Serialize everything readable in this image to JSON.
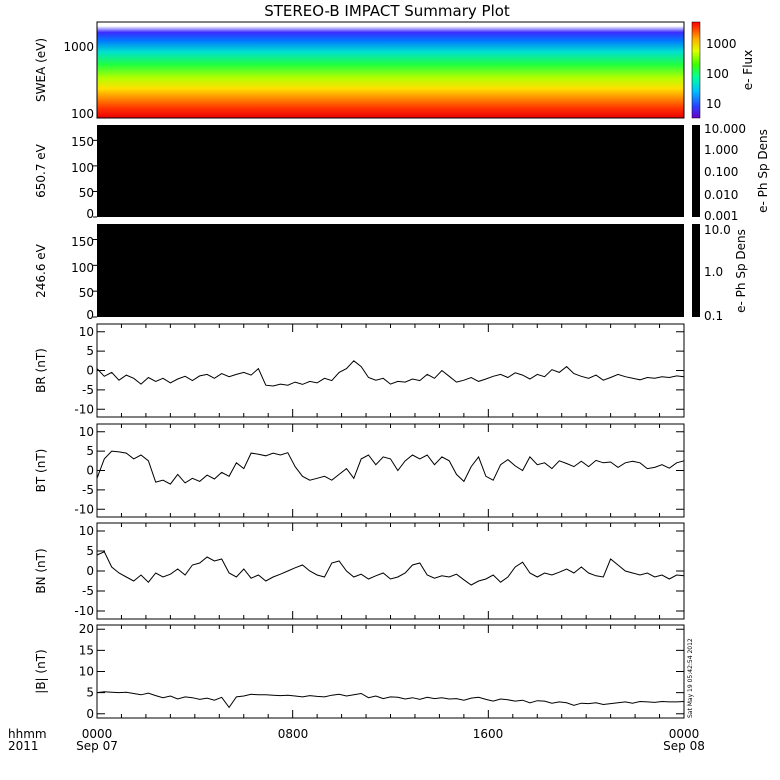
{
  "title": "STEREO-B IMPACT Summary Plot",
  "footer": {
    "row1": "hhmm",
    "row2": "2011",
    "time_ticks": [
      "0000",
      "0800",
      "1600",
      "0000"
    ],
    "date_labels": [
      "Sep 07",
      "Sep 08"
    ]
  },
  "timestamp": "Sat May 19 05:42:54 2012",
  "colors": {
    "trace": "#000000",
    "background": "#ffffff",
    "panel_fill": "#000000"
  },
  "chart_data": [
    {
      "type": "heatmap",
      "ylabel": "SWEA (eV)",
      "ylog": true,
      "ylim": [
        100,
        2000
      ],
      "yticks": [
        "1000",
        "100"
      ],
      "colorbar": {
        "label": "e- Flux",
        "ticks": [
          "1000",
          "100",
          "10"
        ],
        "range": [
          3,
          5000
        ],
        "log": true
      },
      "description_rows_eV": [
        {
          "energy": 1800,
          "flux": 5
        },
        {
          "energy": 1600,
          "flux": 20
        },
        {
          "energy": 1200,
          "flux": 60
        },
        {
          "energy": 900,
          "flux": 150
        },
        {
          "energy": 600,
          "flux": 400
        },
        {
          "energy": 350,
          "flux": 1000
        },
        {
          "energy": 250,
          "flux": 2000
        },
        {
          "energy": 150,
          "flux": 3500
        },
        {
          "energy": 100,
          "flux": 4500
        }
      ]
    },
    {
      "type": "heatmap",
      "ylabel": "650.7 eV",
      "ylim": [
        0,
        180
      ],
      "yticks": [
        "150",
        "100",
        "50",
        "0"
      ],
      "colorbar": {
        "label": "e- Ph Sp Dens",
        "ticks": [
          "10.000",
          "1.000",
          "0.100",
          "0.010",
          "0.001"
        ],
        "log": true
      }
    },
    {
      "type": "heatmap",
      "ylabel": "246.6 eV",
      "ylim": [
        0,
        180
      ],
      "yticks": [
        "150",
        "100",
        "50",
        "0"
      ],
      "colorbar": {
        "label": "e- Ph Sp Dens",
        "ticks": [
          "10.0",
          "1.0",
          "0.1"
        ],
        "log": true
      }
    },
    {
      "type": "line",
      "ylabel": "BR (nT)",
      "ylim": [
        -12,
        12
      ],
      "yticks": [
        "10",
        "5",
        "0",
        "-5",
        "-10"
      ],
      "x": [
        0,
        0.3,
        0.6,
        0.9,
        1.2,
        1.5,
        1.8,
        2.1,
        2.4,
        2.7,
        3.0,
        3.3,
        3.6,
        3.9,
        4.2,
        4.5,
        4.8,
        5.1,
        5.4,
        5.7,
        6.0,
        6.3,
        6.6,
        6.9,
        7.2,
        7.5,
        7.8,
        8.1,
        8.4,
        8.7,
        9.0,
        9.3,
        9.6,
        9.9,
        10.2,
        10.5,
        10.8,
        11.1,
        11.4,
        11.7,
        12.0,
        12.3,
        12.6,
        12.9,
        13.2,
        13.5,
        13.8,
        14.1,
        14.4,
        14.7,
        15.0,
        15.3,
        15.6,
        15.9,
        16.2,
        16.5,
        16.8,
        17.1,
        17.4,
        17.7,
        18.0,
        18.3,
        18.6,
        18.9,
        19.2,
        19.5,
        19.8,
        20.1,
        20.4,
        20.7,
        21.0,
        21.3,
        21.6,
        21.9,
        22.2,
        22.5,
        22.8,
        23.1,
        23.4,
        23.7,
        24.0
      ],
      "values": [
        0.5,
        -1.5,
        -0.5,
        -2.5,
        -1.2,
        -2.0,
        -3.5,
        -1.8,
        -2.8,
        -2.0,
        -3.2,
        -2.2,
        -1.5,
        -2.6,
        -1.4,
        -1.0,
        -2.0,
        -0.8,
        -1.6,
        -1.0,
        -0.5,
        -1.2,
        0.5,
        -3.8,
        -4.0,
        -3.5,
        -3.8,
        -3.0,
        -3.6,
        -2.8,
        -3.2,
        -2.0,
        -2.6,
        -0.5,
        0.5,
        2.5,
        1.0,
        -1.8,
        -2.5,
        -2.0,
        -3.5,
        -2.8,
        -3.0,
        -2.2,
        -2.6,
        -1.0,
        -2.0,
        0.0,
        -1.5,
        -3.0,
        -2.5,
        -1.8,
        -2.8,
        -2.2,
        -1.5,
        -1.0,
        -1.8,
        -0.6,
        -1.2,
        -2.2,
        -1.0,
        -1.6,
        0.2,
        -0.5,
        1.0,
        -0.8,
        -1.5,
        -2.0,
        -1.2,
        -2.5,
        -1.8,
        -1.0,
        -1.6,
        -2.0,
        -2.4,
        -1.8,
        -2.0,
        -1.6,
        -1.8,
        -1.4,
        -1.6
      ]
    },
    {
      "type": "line",
      "ylabel": "BT (nT)",
      "ylim": [
        -12,
        12
      ],
      "yticks": [
        "10",
        "5",
        "0",
        "-5",
        "-10"
      ],
      "x": [
        0,
        0.3,
        0.6,
        0.9,
        1.2,
        1.5,
        1.8,
        2.1,
        2.4,
        2.7,
        3.0,
        3.3,
        3.6,
        3.9,
        4.2,
        4.5,
        4.8,
        5.1,
        5.4,
        5.7,
        6.0,
        6.3,
        6.6,
        6.9,
        7.2,
        7.5,
        7.8,
        8.1,
        8.4,
        8.7,
        9.0,
        9.3,
        9.6,
        9.9,
        10.2,
        10.5,
        10.8,
        11.1,
        11.4,
        11.7,
        12.0,
        12.3,
        12.6,
        12.9,
        13.2,
        13.5,
        13.8,
        14.1,
        14.4,
        14.7,
        15.0,
        15.3,
        15.6,
        15.9,
        16.2,
        16.5,
        16.8,
        17.1,
        17.4,
        17.7,
        18.0,
        18.3,
        18.6,
        18.9,
        19.2,
        19.5,
        19.8,
        20.1,
        20.4,
        20.7,
        21.0,
        21.3,
        21.6,
        21.9,
        22.2,
        22.5,
        22.8,
        23.1,
        23.4,
        23.7,
        24.0
      ],
      "values": [
        -2.0,
        3.0,
        5.0,
        4.8,
        4.5,
        3.0,
        4.0,
        2.5,
        -3.0,
        -2.5,
        -3.5,
        -1.0,
        -3.2,
        -2.0,
        -2.8,
        -1.2,
        -2.2,
        -0.5,
        -1.5,
        2.0,
        0.5,
        4.5,
        4.2,
        3.8,
        4.5,
        4.0,
        4.6,
        1.0,
        -1.5,
        -2.5,
        -2.0,
        -1.5,
        -2.5,
        -1.0,
        0.5,
        -2.0,
        3.0,
        4.0,
        1.5,
        3.5,
        3.0,
        0.0,
        2.5,
        4.0,
        3.0,
        4.0,
        1.5,
        3.5,
        2.5,
        -1.0,
        -2.8,
        1.0,
        3.5,
        -1.5,
        -2.5,
        1.5,
        2.8,
        1.2,
        0.0,
        3.5,
        1.5,
        2.0,
        0.5,
        2.5,
        1.8,
        1.0,
        2.4,
        1.0,
        2.6,
        2.0,
        2.2,
        0.8,
        2.0,
        2.4,
        2.0,
        0.5,
        0.8,
        1.5,
        0.6,
        2.0,
        2.5
      ]
    },
    {
      "type": "line",
      "ylabel": "BN (nT)",
      "ylim": [
        -12,
        12
      ],
      "yticks": [
        "10",
        "5",
        "0",
        "-5",
        "-10"
      ],
      "x": [
        0,
        0.3,
        0.6,
        0.9,
        1.2,
        1.5,
        1.8,
        2.1,
        2.4,
        2.7,
        3.0,
        3.3,
        3.6,
        3.9,
        4.2,
        4.5,
        4.8,
        5.1,
        5.4,
        5.7,
        6.0,
        6.3,
        6.6,
        6.9,
        7.2,
        7.5,
        7.8,
        8.1,
        8.4,
        8.7,
        9.0,
        9.3,
        9.6,
        9.9,
        10.2,
        10.5,
        10.8,
        11.1,
        11.4,
        11.7,
        12.0,
        12.3,
        12.6,
        12.9,
        13.2,
        13.5,
        13.8,
        14.1,
        14.4,
        14.7,
        15.0,
        15.3,
        15.6,
        15.9,
        16.2,
        16.5,
        16.8,
        17.1,
        17.4,
        17.7,
        18.0,
        18.3,
        18.6,
        18.9,
        19.2,
        19.5,
        19.8,
        20.1,
        20.4,
        20.7,
        21.0,
        21.3,
        21.6,
        21.9,
        22.2,
        22.5,
        22.8,
        23.1,
        23.4,
        23.7,
        24.0
      ],
      "values": [
        4.0,
        4.8,
        1.0,
        -0.5,
        -1.5,
        -2.5,
        -1.0,
        -2.8,
        -0.5,
        -1.5,
        -0.8,
        0.5,
        -1.0,
        1.5,
        2.0,
        3.5,
        2.5,
        3.0,
        -0.5,
        -1.5,
        0.5,
        -1.8,
        -1.0,
        -2.5,
        -1.5,
        -0.8,
        0.0,
        0.8,
        1.5,
        0.0,
        -1.0,
        -1.5,
        2.0,
        2.5,
        0.0,
        -1.5,
        -0.8,
        -2.0,
        -1.2,
        -0.5,
        -2.0,
        -1.5,
        -0.5,
        1.5,
        2.0,
        -1.0,
        -1.8,
        -1.2,
        -1.5,
        -0.8,
        -2.2,
        -3.5,
        -2.5,
        -2.0,
        -1.0,
        -2.8,
        -1.5,
        1.0,
        2.2,
        -0.5,
        -1.5,
        -0.5,
        -1.0,
        -0.3,
        0.5,
        -0.5,
        1.0,
        -0.5,
        -1.2,
        -1.5,
        3.0,
        1.5,
        0.0,
        -0.5,
        -1.0,
        -0.5,
        -1.5,
        -1.0,
        -2.0,
        -1.0,
        -1.2
      ]
    },
    {
      "type": "line",
      "ylabel": "|B| (nT)",
      "ylim": [
        -1,
        21
      ],
      "yticks": [
        "20",
        "15",
        "10",
        "5",
        "0"
      ],
      "x": [
        0,
        0.3,
        0.6,
        0.9,
        1.2,
        1.5,
        1.8,
        2.1,
        2.4,
        2.7,
        3.0,
        3.3,
        3.6,
        3.9,
        4.2,
        4.5,
        4.8,
        5.1,
        5.4,
        5.7,
        6.0,
        6.3,
        6.6,
        6.9,
        7.2,
        7.5,
        7.8,
        8.1,
        8.4,
        8.7,
        9.0,
        9.3,
        9.6,
        9.9,
        10.2,
        10.5,
        10.8,
        11.1,
        11.4,
        11.7,
        12.0,
        12.3,
        12.6,
        12.9,
        13.2,
        13.5,
        13.8,
        14.1,
        14.4,
        14.7,
        15.0,
        15.3,
        15.6,
        15.9,
        16.2,
        16.5,
        16.8,
        17.1,
        17.4,
        17.7,
        18.0,
        18.3,
        18.6,
        18.9,
        19.2,
        19.5,
        19.8,
        20.1,
        20.4,
        20.7,
        21.0,
        21.3,
        21.6,
        21.9,
        22.2,
        22.5,
        22.8,
        23.1,
        23.4,
        23.7,
        24.0
      ],
      "values": [
        5.0,
        5.2,
        5.1,
        5.0,
        5.1,
        4.8,
        4.5,
        4.9,
        4.3,
        3.8,
        4.2,
        3.5,
        4.0,
        3.8,
        3.4,
        3.7,
        3.2,
        3.9,
        1.5,
        4.0,
        4.2,
        4.6,
        4.5,
        4.5,
        4.4,
        4.3,
        4.4,
        4.2,
        4.0,
        4.3,
        4.1,
        4.0,
        4.4,
        4.6,
        4.2,
        4.5,
        4.8,
        3.8,
        4.2,
        3.6,
        4.0,
        3.9,
        3.5,
        3.8,
        3.4,
        3.9,
        3.6,
        3.8,
        3.5,
        3.6,
        3.2,
        3.7,
        3.9,
        3.4,
        3.0,
        3.5,
        3.3,
        3.0,
        3.2,
        2.6,
        3.1,
        3.0,
        2.5,
        2.8,
        2.6,
        2.0,
        2.5,
        2.4,
        2.6,
        2.2,
        2.4,
        2.6,
        2.8,
        2.5,
        2.9,
        2.8,
        2.7,
        2.9,
        2.8,
        2.8,
        2.9
      ]
    }
  ]
}
